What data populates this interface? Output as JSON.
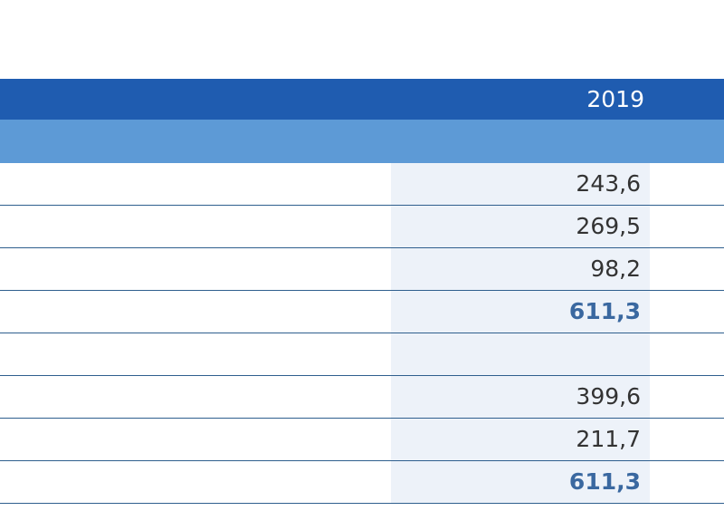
{
  "table": {
    "header": {
      "year": "2019"
    },
    "sections": [
      {
        "rows": [
          "243,6",
          "269,5",
          "98,2"
        ],
        "total": "611,3"
      },
      {
        "rows": [
          "399,6",
          "211,7"
        ],
        "total": "611,3"
      }
    ]
  }
}
